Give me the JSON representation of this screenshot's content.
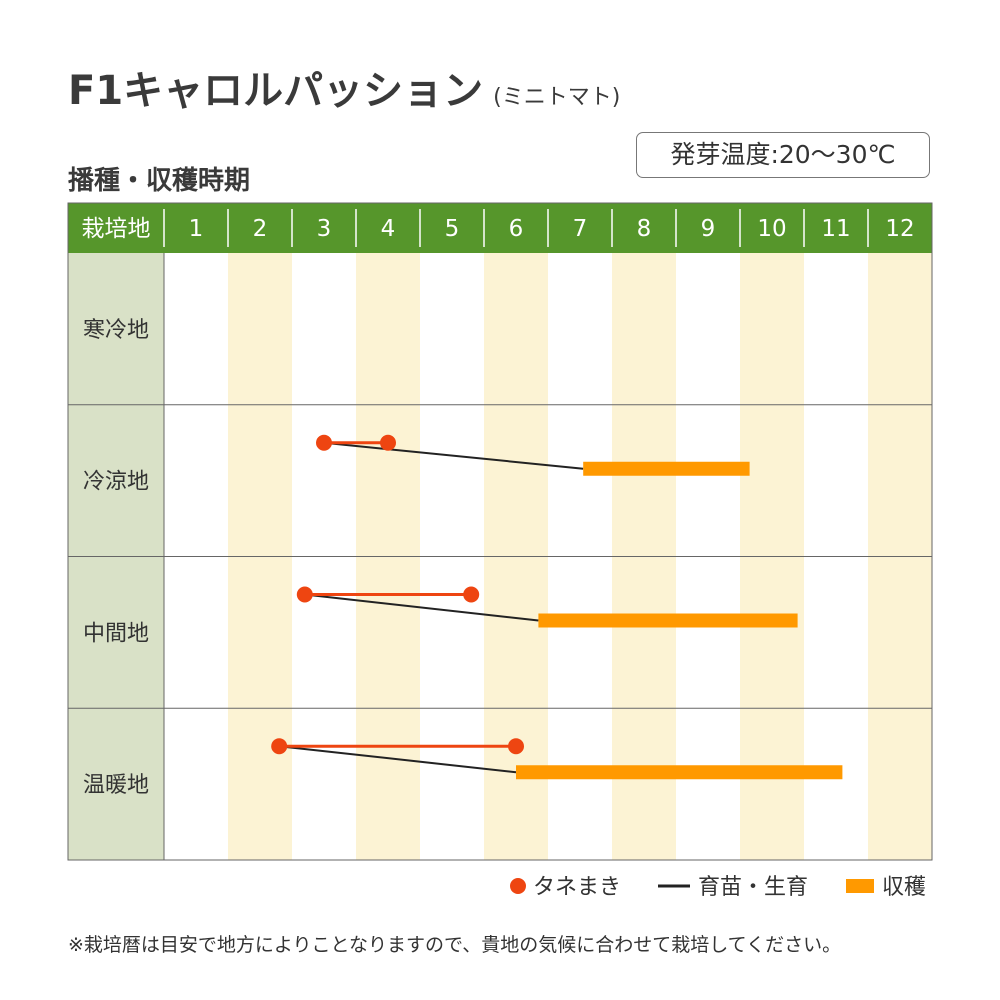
{
  "title": "F1キャロルパッション",
  "title_sub": "(ミニトマト)",
  "temperature_label": "発芽温度:20〜30℃",
  "subtitle": "播種・収穫時期",
  "footnote": "※栽培暦は目安で地方によりことなりますので、貴地の気候に合わせて栽培してください。",
  "colors": {
    "header_green": "#56962b",
    "row_label_bg": "#d9e1c7",
    "stripe": "#fcf3d4",
    "sowing": "#ee4511",
    "seedling": "#222222",
    "harvest": "#ff9900"
  },
  "chart_data": {
    "type": "gantt",
    "header_label": "栽培地",
    "months": [
      "1",
      "2",
      "3",
      "4",
      "5",
      "6",
      "7",
      "8",
      "9",
      "10",
      "11",
      "12"
    ],
    "x_range": [
      1,
      13
    ],
    "rows": [
      {
        "name": "寒冷地"
      },
      {
        "name": "冷涼地",
        "sowing": [
          3.5,
          4.5
        ],
        "seedling": [
          3.5,
          7.55
        ],
        "harvest": [
          7.55,
          10.15
        ]
      },
      {
        "name": "中間地",
        "sowing": [
          3.2,
          5.8
        ],
        "seedling": [
          3.2,
          6.85
        ],
        "harvest": [
          6.85,
          10.9
        ]
      },
      {
        "name": "温暖地",
        "sowing": [
          2.8,
          6.5
        ],
        "seedling": [
          2.8,
          6.5
        ],
        "harvest": [
          6.5,
          11.6
        ]
      }
    ],
    "legend": [
      {
        "key": "sowing",
        "label": "タネまき"
      },
      {
        "key": "seedling",
        "label": "育苗・生育"
      },
      {
        "key": "harvest",
        "label": "収穫"
      }
    ]
  }
}
